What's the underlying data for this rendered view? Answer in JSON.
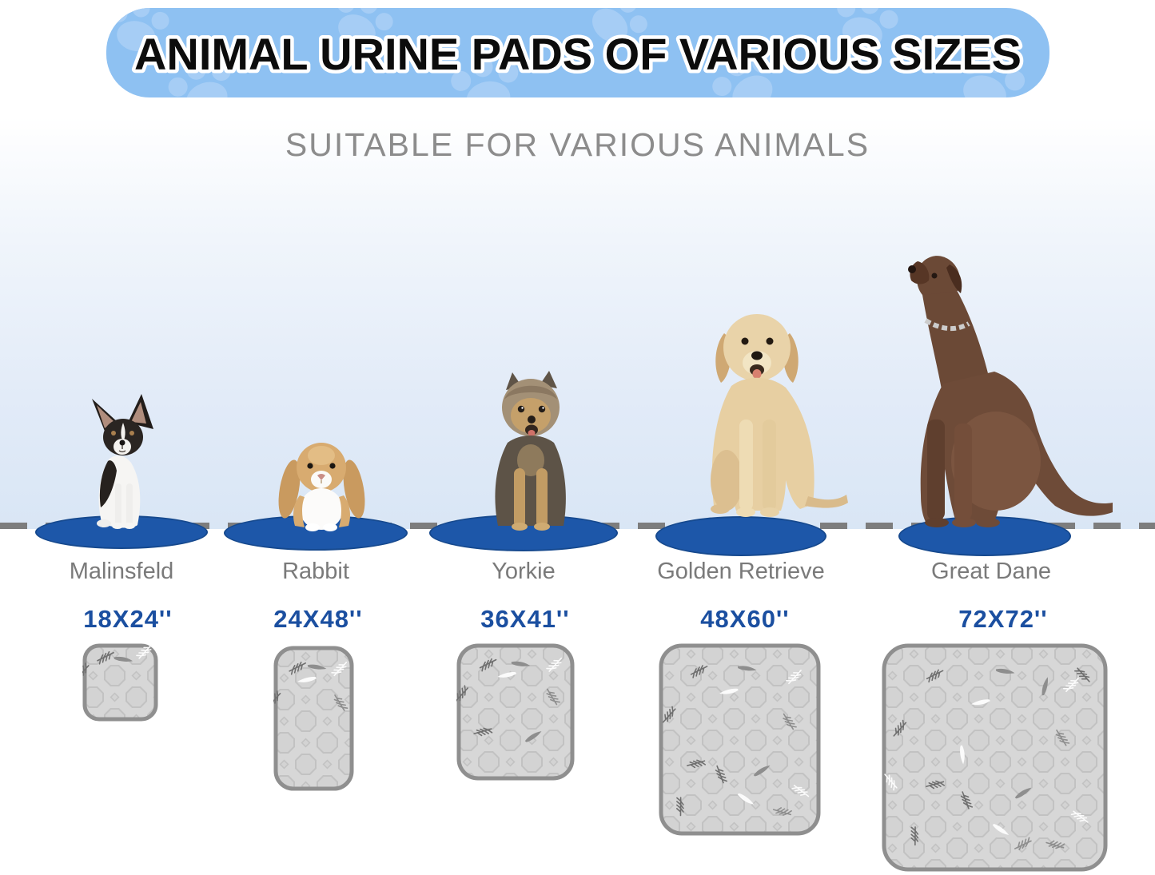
{
  "banner": {
    "title": "ANIMAL URINE PADS OF VARIOUS SIZES"
  },
  "subtitle": "SUITABLE FOR VARIOUS ANIMALS",
  "columns": [
    {
      "animal": "Malinsfeld",
      "size": "18X24''"
    },
    {
      "animal": "Rabbit",
      "size": "24X48''"
    },
    {
      "animal": "Yorkie",
      "size": "36X41''"
    },
    {
      "animal": "Golden Retrieve",
      "size": "48X60''"
    },
    {
      "animal": "Great Dane",
      "size": "72X72''"
    }
  ],
  "colors": {
    "banner_bg": "#8ec1f2",
    "banner_paw": "#a6cdf5",
    "title_text": "#0c0c0c",
    "subtitle_text": "#8c8c8c",
    "label_text": "#7a7a7a",
    "size_text": "#1b4fa0",
    "oval_blue": "#1d57a9",
    "dash_gray": "#7d7d7d",
    "stage_blue": "#d9e6f5",
    "pad_fill": "#d7d7d7",
    "pad_border": "#8f8f8f"
  }
}
